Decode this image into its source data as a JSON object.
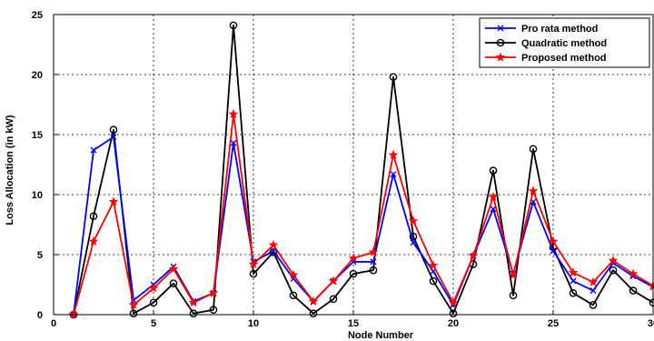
{
  "chart_data": {
    "type": "line",
    "xlabel": "Node Number",
    "ylabel": "Loss Allocation (in kW)",
    "xlim": [
      0,
      30
    ],
    "ylim": [
      0,
      25
    ],
    "xticks": [
      "0",
      "5",
      "10",
      "15",
      "20",
      "25",
      "30"
    ],
    "yticks": [
      "0",
      "5",
      "10",
      "15",
      "20",
      "25"
    ],
    "grid": true,
    "legend_position": "top-right",
    "x": [
      1,
      2,
      3,
      4,
      5,
      6,
      7,
      8,
      9,
      10,
      11,
      12,
      13,
      14,
      15,
      16,
      17,
      18,
      19,
      20,
      21,
      22,
      23,
      24,
      25,
      26,
      27,
      28,
      29,
      30
    ],
    "series": [
      {
        "name": "Pro rata method",
        "color": "#0000ff",
        "marker": "x",
        "values": [
          0,
          13.7,
          14.8,
          1.2,
          2.5,
          4.0,
          1.1,
          1.8,
          14.3,
          4.4,
          5.3,
          3.0,
          1.1,
          2.8,
          4.4,
          4.4,
          11.7,
          6.0,
          3.6,
          0.8,
          4.9,
          8.8,
          3.4,
          9.4,
          5.3,
          2.8,
          2.0,
          4.3,
          3.2,
          2.3
        ]
      },
      {
        "name": "Quadratic method",
        "color": "#000000",
        "marker": "circle",
        "values": [
          0,
          8.2,
          15.4,
          0.1,
          1.0,
          2.6,
          0.1,
          0.4,
          24.1,
          3.4,
          5.2,
          1.6,
          0.1,
          1.3,
          3.4,
          3.7,
          19.8,
          6.5,
          2.8,
          0.1,
          4.2,
          12.0,
          1.6,
          13.8,
          5.6,
          1.8,
          0.8,
          3.7,
          2.0,
          1.0
        ]
      },
      {
        "name": "Proposed method",
        "color": "#ff0000",
        "marker": "star",
        "values": [
          0,
          6.1,
          9.4,
          0.8,
          2.2,
          3.8,
          1.0,
          1.8,
          16.7,
          4.2,
          5.8,
          3.3,
          1.1,
          2.8,
          4.7,
          5.2,
          13.3,
          7.8,
          4.1,
          1.0,
          4.9,
          9.8,
          3.3,
          10.3,
          6.1,
          3.5,
          2.7,
          4.5,
          3.4,
          2.4
        ]
      }
    ]
  }
}
